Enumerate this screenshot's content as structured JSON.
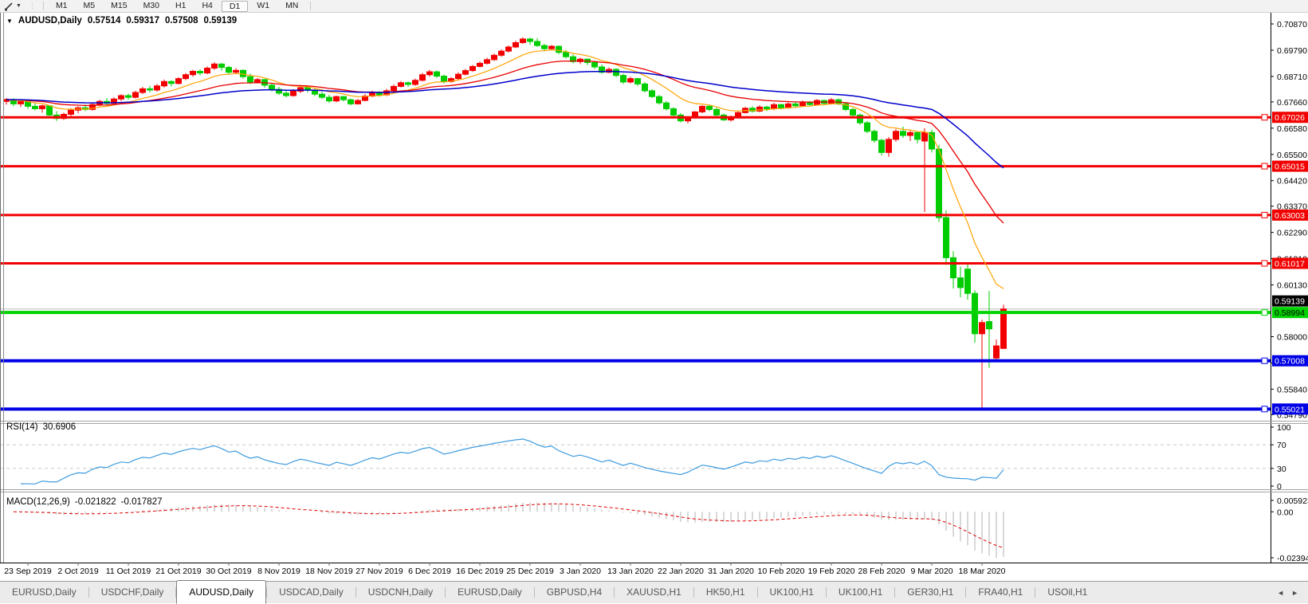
{
  "toolbar": {
    "drawing_tool_icon": "pencil-icon",
    "timeframes": [
      "M1",
      "M5",
      "M15",
      "M30",
      "H1",
      "H4",
      "D1",
      "W1",
      "MN"
    ],
    "active_timeframe": "D1"
  },
  "icons": {
    "collapse": "▼",
    "scroll_left": "◄",
    "scroll_right": "►",
    "dropdown": "▼",
    "grip": "⋮"
  },
  "chart": {
    "title": {
      "symbol": "AUDUSD,Daily",
      "open": "0.57514",
      "high": "0.59317",
      "low": "0.57508",
      "close": "0.59139"
    },
    "rsi_label": "RSI(14)",
    "rsi_value": "30.6906",
    "macd_label": "MACD(12,26,9)",
    "macd_value": "-0.021822",
    "macd_signal_value": "-0.017827"
  },
  "chart_data": {
    "type": "candlestick",
    "symbol": "AUDUSD",
    "timeframe": "Daily",
    "title": "AUDUSD,Daily 0.57514 0.59317 0.57508 0.59139",
    "legend_position": "none",
    "grid": false,
    "price_axis": {
      "ticks": [
        0.7087,
        0.6979,
        0.6871,
        0.6766,
        0.6658,
        0.655,
        0.6442,
        0.6337,
        0.6229,
        0.6121,
        0.6013,
        0.58,
        0.5692,
        0.5584,
        0.5479
      ],
      "range_top": 0.7133,
      "range_bottom": 0.5454
    },
    "current_bid": {
      "price": 0.59139,
      "line_color": "#bdbdbd",
      "box_bg": "#000000",
      "box_fg": "#ffffff"
    },
    "h_lines": [
      {
        "price": 0.67026,
        "color": "#f20000",
        "width": 3,
        "label_fg": "#ffffff"
      },
      {
        "price": 0.65015,
        "color": "#f20000",
        "width": 3,
        "label_fg": "#ffffff"
      },
      {
        "price": 0.63003,
        "color": "#f20000",
        "width": 3,
        "label_fg": "#ffffff"
      },
      {
        "price": 0.61017,
        "color": "#f20000",
        "width": 3,
        "label_fg": "#ffffff"
      },
      {
        "price": 0.58994,
        "color": "#00d300",
        "width": 4,
        "label_fg": "#000000"
      },
      {
        "price": 0.57008,
        "color": "#0000e6",
        "width": 4,
        "label_fg": "#ffffff"
      },
      {
        "price": 0.55021,
        "color": "#0000e6",
        "width": 4,
        "label_fg": "#ffffff"
      }
    ],
    "candle_colors": {
      "up": "#f20000",
      "down": "#00cc00"
    },
    "moving_averages": [
      {
        "name": "fast-ma",
        "period": 10,
        "color": "#ffa200",
        "width": 1.2
      },
      {
        "name": "medium-ma",
        "period": 25,
        "color": "#e80000",
        "width": 1.3
      },
      {
        "name": "slow-ma",
        "period": 55,
        "color": "#0000cc",
        "width": 1.5
      }
    ],
    "candles": [
      [
        0.6768,
        0.6782,
        0.6755,
        0.6776
      ],
      [
        0.6776,
        0.6781,
        0.6748,
        0.6758
      ],
      [
        0.6758,
        0.6773,
        0.6745,
        0.6768
      ],
      [
        0.6768,
        0.6772,
        0.6738,
        0.6748
      ],
      [
        0.6748,
        0.6762,
        0.6731,
        0.6738
      ],
      [
        0.6738,
        0.6755,
        0.6722,
        0.675
      ],
      [
        0.675,
        0.6752,
        0.6705,
        0.6712
      ],
      [
        0.6712,
        0.6728,
        0.6688,
        0.6698
      ],
      [
        0.6698,
        0.6722,
        0.6692,
        0.6715
      ],
      [
        0.6715,
        0.674,
        0.6708,
        0.6732
      ],
      [
        0.6732,
        0.6748,
        0.672,
        0.6742
      ],
      [
        0.6742,
        0.6755,
        0.6728,
        0.6735
      ],
      [
        0.6735,
        0.6762,
        0.673,
        0.6755
      ],
      [
        0.6755,
        0.6775,
        0.6748,
        0.6768
      ],
      [
        0.6768,
        0.6782,
        0.6752,
        0.676
      ],
      [
        0.676,
        0.6785,
        0.6755,
        0.6778
      ],
      [
        0.6778,
        0.6798,
        0.677,
        0.6792
      ],
      [
        0.6792,
        0.68,
        0.6775,
        0.6785
      ],
      [
        0.6785,
        0.6812,
        0.678,
        0.6805
      ],
      [
        0.6805,
        0.6828,
        0.6798,
        0.682
      ],
      [
        0.682,
        0.6832,
        0.6805,
        0.6815
      ],
      [
        0.6815,
        0.684,
        0.6808,
        0.6832
      ],
      [
        0.6832,
        0.6858,
        0.6825,
        0.685
      ],
      [
        0.685,
        0.6855,
        0.683,
        0.6842
      ],
      [
        0.6842,
        0.6868,
        0.6838,
        0.6862
      ],
      [
        0.6862,
        0.6885,
        0.6855,
        0.6878
      ],
      [
        0.6878,
        0.6898,
        0.687,
        0.6892
      ],
      [
        0.6892,
        0.69,
        0.6875,
        0.6885
      ],
      [
        0.6885,
        0.6912,
        0.688,
        0.6905
      ],
      [
        0.6905,
        0.6929,
        0.6898,
        0.6922
      ],
      [
        0.6922,
        0.6926,
        0.6895,
        0.6908
      ],
      [
        0.6908,
        0.6915,
        0.6878,
        0.6888
      ],
      [
        0.6888,
        0.6905,
        0.6882,
        0.6896
      ],
      [
        0.6896,
        0.69,
        0.6862,
        0.687
      ],
      [
        0.687,
        0.6882,
        0.684,
        0.6848
      ],
      [
        0.6848,
        0.6865,
        0.6842,
        0.6858
      ],
      [
        0.6858,
        0.686,
        0.6825,
        0.6835
      ],
      [
        0.6835,
        0.6845,
        0.681,
        0.6818
      ],
      [
        0.6818,
        0.6828,
        0.6795,
        0.6802
      ],
      [
        0.6802,
        0.6815,
        0.6785,
        0.6792
      ],
      [
        0.6792,
        0.6818,
        0.6788,
        0.681
      ],
      [
        0.681,
        0.6832,
        0.6802,
        0.6825
      ],
      [
        0.6825,
        0.683,
        0.6805,
        0.6815
      ],
      [
        0.6815,
        0.6822,
        0.679,
        0.6798
      ],
      [
        0.6798,
        0.6808,
        0.6778,
        0.6785
      ],
      [
        0.6785,
        0.6795,
        0.6762,
        0.677
      ],
      [
        0.677,
        0.6792,
        0.6765,
        0.6788
      ],
      [
        0.6788,
        0.679,
        0.6768,
        0.6775
      ],
      [
        0.6775,
        0.678,
        0.6752,
        0.6758
      ],
      [
        0.6758,
        0.6778,
        0.6755,
        0.6772
      ],
      [
        0.6772,
        0.6798,
        0.6768,
        0.679
      ],
      [
        0.679,
        0.6812,
        0.6785,
        0.6805
      ],
      [
        0.6805,
        0.681,
        0.6788,
        0.6795
      ],
      [
        0.6795,
        0.682,
        0.679,
        0.6812
      ],
      [
        0.6812,
        0.6838,
        0.6808,
        0.683
      ],
      [
        0.683,
        0.6852,
        0.6825,
        0.6845
      ],
      [
        0.6845,
        0.685,
        0.6828,
        0.6838
      ],
      [
        0.6838,
        0.6862,
        0.6832,
        0.6855
      ],
      [
        0.6855,
        0.6885,
        0.685,
        0.6878
      ],
      [
        0.6878,
        0.6898,
        0.687,
        0.689
      ],
      [
        0.689,
        0.6895,
        0.6865,
        0.6872
      ],
      [
        0.6872,
        0.6878,
        0.6842,
        0.685
      ],
      [
        0.685,
        0.6868,
        0.6845,
        0.6862
      ],
      [
        0.6862,
        0.6888,
        0.6858,
        0.688
      ],
      [
        0.688,
        0.6902,
        0.6875,
        0.6895
      ],
      [
        0.6895,
        0.6918,
        0.689,
        0.6912
      ],
      [
        0.6912,
        0.6932,
        0.6908,
        0.6925
      ],
      [
        0.6925,
        0.6948,
        0.692,
        0.694
      ],
      [
        0.694,
        0.6965,
        0.6935,
        0.6958
      ],
      [
        0.6958,
        0.6982,
        0.6952,
        0.6975
      ],
      [
        0.6975,
        0.6998,
        0.697,
        0.6992
      ],
      [
        0.6992,
        0.7018,
        0.6988,
        0.701
      ],
      [
        0.701,
        0.7032,
        0.7005,
        0.7025
      ],
      [
        0.7025,
        0.703,
        0.7002,
        0.7015
      ],
      [
        0.7015,
        0.7028,
        0.6992,
        0.6998
      ],
      [
        0.6998,
        0.7005,
        0.6975,
        0.6985
      ],
      [
        0.6985,
        0.7,
        0.698,
        0.6995
      ],
      [
        0.6995,
        0.6998,
        0.6962,
        0.697
      ],
      [
        0.697,
        0.698,
        0.6945,
        0.6952
      ],
      [
        0.6952,
        0.6962,
        0.6925,
        0.6932
      ],
      [
        0.6932,
        0.6948,
        0.6922,
        0.6942
      ],
      [
        0.6942,
        0.6945,
        0.6918,
        0.6928
      ],
      [
        0.6928,
        0.6935,
        0.6902,
        0.691
      ],
      [
        0.691,
        0.692,
        0.6882,
        0.6888
      ],
      [
        0.6888,
        0.6908,
        0.6884,
        0.69
      ],
      [
        0.69,
        0.6905,
        0.6868,
        0.6875
      ],
      [
        0.6875,
        0.6882,
        0.684,
        0.6848
      ],
      [
        0.6848,
        0.687,
        0.6842,
        0.6862
      ],
      [
        0.6862,
        0.6865,
        0.6832,
        0.684
      ],
      [
        0.684,
        0.6848,
        0.6805,
        0.6812
      ],
      [
        0.6812,
        0.6818,
        0.6782,
        0.6788
      ],
      [
        0.6788,
        0.6795,
        0.6755,
        0.6762
      ],
      [
        0.6762,
        0.677,
        0.673,
        0.6738
      ],
      [
        0.6738,
        0.6745,
        0.6705,
        0.6712
      ],
      [
        0.6712,
        0.672,
        0.6682,
        0.6688
      ],
      [
        0.6688,
        0.6705,
        0.6678,
        0.6702
      ],
      [
        0.6702,
        0.6728,
        0.6698,
        0.6725
      ],
      [
        0.6725,
        0.6752,
        0.672,
        0.6748
      ],
      [
        0.6748,
        0.6755,
        0.6728,
        0.6735
      ],
      [
        0.6735,
        0.6742,
        0.6705,
        0.6712
      ],
      [
        0.6712,
        0.6718,
        0.6688,
        0.6692
      ],
      [
        0.6692,
        0.671,
        0.6685,
        0.6705
      ],
      [
        0.6705,
        0.6728,
        0.67,
        0.6722
      ],
      [
        0.6722,
        0.6745,
        0.6718,
        0.674
      ],
      [
        0.674,
        0.6748,
        0.6722,
        0.6728
      ],
      [
        0.6728,
        0.6752,
        0.6724,
        0.6745
      ],
      [
        0.6745,
        0.675,
        0.6728,
        0.6738
      ],
      [
        0.6738,
        0.6762,
        0.6732,
        0.6755
      ],
      [
        0.6755,
        0.6758,
        0.6735,
        0.6742
      ],
      [
        0.6742,
        0.6765,
        0.6738,
        0.6758
      ],
      [
        0.6758,
        0.6768,
        0.6742,
        0.675
      ],
      [
        0.675,
        0.6772,
        0.6745,
        0.6765
      ],
      [
        0.6765,
        0.677,
        0.6748,
        0.6755
      ],
      [
        0.6755,
        0.6778,
        0.675,
        0.6772
      ],
      [
        0.6772,
        0.6775,
        0.6752,
        0.676
      ],
      [
        0.676,
        0.6782,
        0.6755,
        0.6775
      ],
      [
        0.6775,
        0.678,
        0.6752,
        0.6758
      ],
      [
        0.6758,
        0.6762,
        0.6728,
        0.6735
      ],
      [
        0.6735,
        0.6742,
        0.6705,
        0.6712
      ],
      [
        0.6712,
        0.6718,
        0.6672,
        0.668
      ],
      [
        0.668,
        0.6688,
        0.6638,
        0.6645
      ],
      [
        0.6645,
        0.6652,
        0.6598,
        0.6608
      ],
      [
        0.6608,
        0.6615,
        0.6545,
        0.6558
      ],
      [
        0.6558,
        0.6622,
        0.654,
        0.6612
      ],
      [
        0.6612,
        0.6655,
        0.6602,
        0.6645
      ],
      [
        0.6645,
        0.6665,
        0.6618,
        0.6628
      ],
      [
        0.6628,
        0.6648,
        0.6605,
        0.664
      ],
      [
        0.664,
        0.6645,
        0.6595,
        0.6612
      ],
      [
        0.6605,
        0.6658,
        0.6313,
        0.664
      ],
      [
        0.664,
        0.6652,
        0.6558,
        0.6572
      ],
      [
        0.6572,
        0.659,
        0.6272,
        0.629
      ],
      [
        0.629,
        0.632,
        0.6095,
        0.6125
      ],
      [
        0.6125,
        0.6152,
        0.5998,
        0.6042
      ],
      [
        0.6042,
        0.6088,
        0.5962,
        0.6002
      ],
      [
        0.6078,
        0.6105,
        0.5952,
        0.5978
      ],
      [
        0.5978,
        0.5992,
        0.5775,
        0.5812
      ],
      [
        0.5812,
        0.587,
        0.5502,
        0.5858
      ],
      [
        0.5862,
        0.5988,
        0.5672,
        0.5832
      ],
      [
        0.5712,
        0.5788,
        0.5698,
        0.5762
      ],
      [
        0.57514,
        0.59317,
        0.57508,
        0.59139
      ]
    ],
    "x_axis": {
      "labels": [
        "23 Sep 2019",
        "2 Oct 2019",
        "11 Oct 2019",
        "21 Oct 2019",
        "30 Oct 2019",
        "8 Nov 2019",
        "18 Nov 2019",
        "27 Nov 2019",
        "6 Dec 2019",
        "16 Dec 2019",
        "25 Dec 2019",
        "3 Jan 2020",
        "13 Jan 2020",
        "22 Jan 2020",
        "31 Jan 2020",
        "10 Feb 2020",
        "19 Feb 2020",
        "28 Feb 2020",
        "9 Mar 2020",
        "18 Mar 2020"
      ],
      "first_candle": 3,
      "step": 7
    },
    "rsi": {
      "name": "RSI",
      "period": 14,
      "current_value": 30.6906,
      "levels": [
        70,
        30
      ],
      "axis_ticks": [
        {
          "value": 100,
          "label": "100"
        },
        {
          "value": 70,
          "label": "70"
        },
        {
          "value": 30,
          "label": "30"
        },
        {
          "value": 0,
          "label": "0"
        }
      ],
      "line_color": "#3e9bdf",
      "level_color": "#c8c8c8"
    },
    "macd": {
      "name": "MACD",
      "fast": 12,
      "slow": 26,
      "signal": 9,
      "current_main": -0.021822,
      "current_signal": -0.017827,
      "axis_ticks": [
        {
          "value": 0.005923,
          "label": "0.005923"
        },
        {
          "value": 0,
          "label": "0.00"
        },
        {
          "value": -0.023944,
          "label": "-0.023944"
        }
      ],
      "hist_color": "#b0b0b0",
      "signal_color": "#e00000"
    }
  },
  "tabbar": {
    "tabs": [
      {
        "label": "EURUSD,Daily",
        "active": false
      },
      {
        "label": "USDCHF,Daily",
        "active": false
      },
      {
        "label": "AUDUSD,Daily",
        "active": true
      },
      {
        "label": "USDCAD,Daily",
        "active": false
      },
      {
        "label": "USDCNH,Daily",
        "active": false
      },
      {
        "label": "EURUSD,Daily",
        "active": false
      },
      {
        "label": "GBPUSD,H4",
        "active": false
      },
      {
        "label": "XAUUSD,H1",
        "active": false
      },
      {
        "label": "HK50,H1",
        "active": false
      },
      {
        "label": "UK100,H1",
        "active": false
      },
      {
        "label": "UK100,H1",
        "active": false
      },
      {
        "label": "GER30,H1",
        "active": false
      },
      {
        "label": "FRA40,H1",
        "active": false
      },
      {
        "label": "USOil,H1",
        "active": false
      }
    ]
  }
}
